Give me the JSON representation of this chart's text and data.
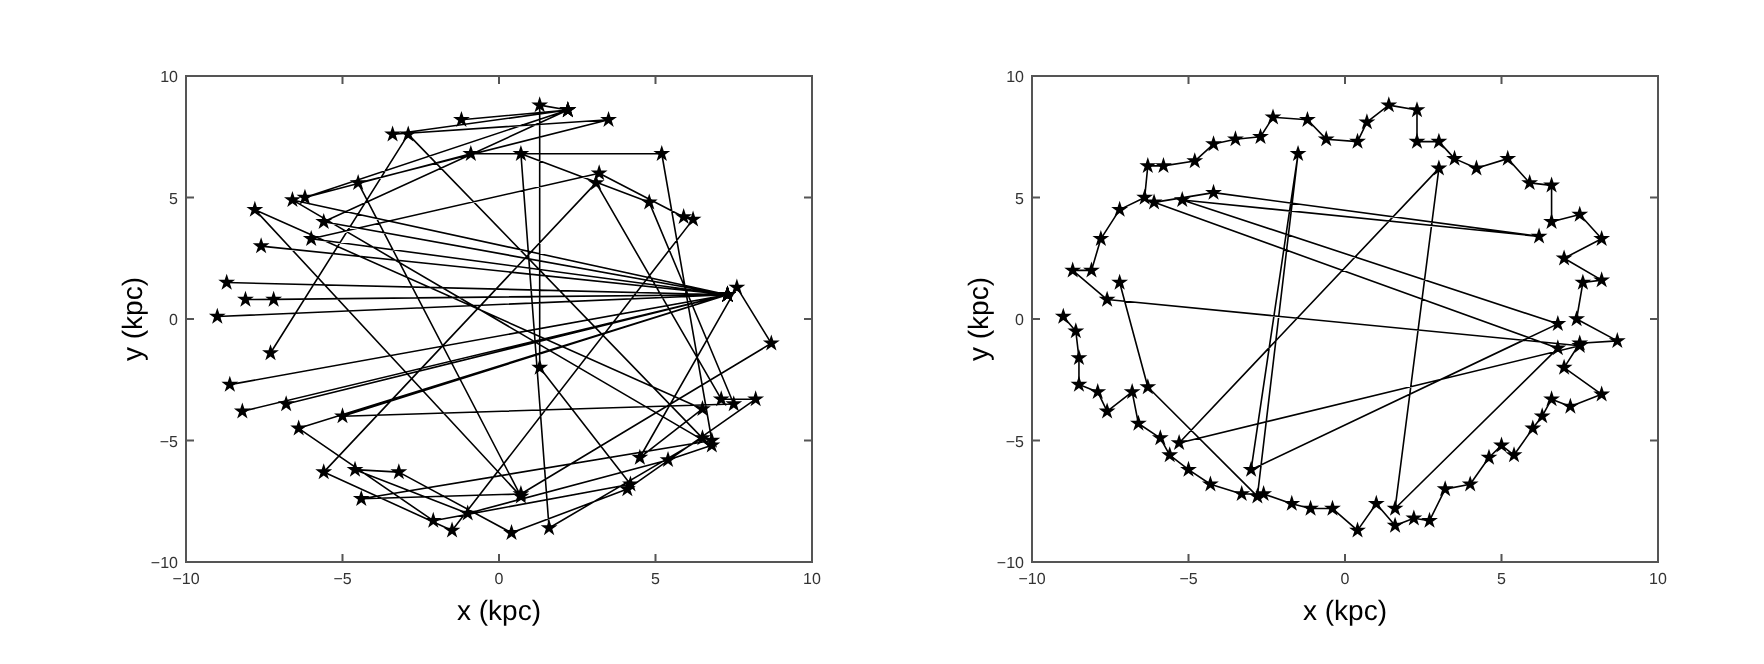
{
  "chart_data": [
    {
      "type": "line",
      "xlabel": "x (kpc)",
      "ylabel": "y (kpc)",
      "xlim": [
        -10,
        10
      ],
      "ylim": [
        -10,
        10
      ],
      "xticks": [
        -10,
        -5,
        0,
        5,
        10
      ],
      "yticks": [
        -10,
        -5,
        0,
        5,
        10
      ],
      "marker": "star",
      "line_style": "solid",
      "grid": false,
      "series": [
        {
          "color": "#000000",
          "x": [
            -9,
            7.3,
            -8.7,
            7.3,
            -7.6,
            7.3,
            -6.8,
            7.3,
            -8.2,
            7.3,
            -5.6,
            2.2,
            -1.2,
            2.2,
            -3.4,
            3.5,
            -4.5,
            0.7,
            -7.8,
            6.5,
            4.5,
            7.6,
            8.7,
            0.7,
            -4.4,
            6.8,
            5.2,
            -0.9,
            -6.2,
            2.2,
            1.3,
            1.3,
            4.2,
            -2.1,
            -6.4,
            7.3,
            -8.6,
            7.3,
            -7.2,
            7.3,
            -6,
            3.2,
            5.9,
            6.2,
            -1.5,
            -5.6,
            3.1,
            7.1,
            8.2,
            4.1,
            0.4,
            -3.2,
            -4.6,
            -1,
            5.4,
            6.8,
            -6.6,
            7.3,
            -8.1,
            7.3,
            -5,
            7.5,
            4.8,
            0.7,
            1.6,
            6.5,
            -2.9,
            -7.3
          ],
          "values": [
            0.1,
            1,
            1.5,
            1,
            3,
            1,
            -3.5,
            1,
            -3.8,
            1,
            4,
            8.6,
            8.2,
            8.6,
            7.6,
            8.2,
            5.6,
            -7.3,
            4.5,
            -3.7,
            -5.7,
            1.3,
            -1,
            -7.2,
            -7.4,
            -5,
            6.8,
            6.8,
            5,
            8.6,
            8.8,
            -2,
            -6.8,
            -8.3,
            -4.5,
            1,
            -2.7,
            1,
            0.8,
            1,
            3.3,
            6,
            4.2,
            4.1,
            -8.7,
            -6.3,
            5.6,
            -3.3,
            -3.3,
            -7,
            -8.8,
            -6.3,
            -6.2,
            -8,
            -5.8,
            -5.2,
            4.9,
            1,
            0.8,
            1,
            -4,
            -3.5,
            4.8,
            6.8,
            -8.6,
            -4.9,
            7.6,
            -1.4
          ]
        }
      ]
    },
    {
      "type": "line",
      "xlabel": "x (kpc)",
      "ylabel": "y (kpc)",
      "xlim": [
        -10,
        10
      ],
      "ylim": [
        -10,
        10
      ],
      "xticks": [
        -10,
        -5,
        0,
        5,
        10
      ],
      "yticks": [
        -10,
        -5,
        0,
        5,
        10
      ],
      "marker": "star",
      "line_style": "solid",
      "grid": false,
      "series": [
        {
          "color": "#000000",
          "x": [
            -9,
            -8.6,
            -8.5,
            -8.5,
            -7.9,
            -7.6,
            -6.8,
            -6.6,
            -5.9,
            -5.6,
            -5,
            -4.3,
            -3.3,
            -2.6,
            -1.7,
            -1.1,
            -0.4,
            0.4,
            1,
            1.6,
            2.2,
            2.7,
            3.2,
            4,
            4.6,
            5,
            5.4,
            6,
            6.3,
            6.6,
            7.2,
            8.2,
            7,
            7.5,
            8.7,
            7.4,
            7.6,
            8.2,
            7,
            8.2,
            7.5,
            6.6,
            6.6,
            5.9,
            5.2,
            4.2,
            3.5,
            3,
            2.3,
            2.3,
            1.4,
            0.7,
            0.4,
            -0.6,
            -1.2,
            -2.3,
            -2.7,
            -3.5,
            -4.2,
            -4.8,
            -5.8,
            -6.3,
            -6.4,
            -7.2,
            -7.8,
            -8.1,
            -8.7,
            -7.6,
            7.5,
            -5.3,
            3,
            1.6,
            6.8,
            -6.1,
            -4.2,
            6.2,
            -5.2,
            6.8,
            -3,
            -1.5,
            -2.8,
            -6.3,
            -7.2
          ],
          "values": [
            0.1,
            -0.5,
            -1.6,
            -2.7,
            -3,
            -3.8,
            -3,
            -4.3,
            -4.9,
            -5.6,
            -6.2,
            -6.8,
            -7.2,
            -7.2,
            -7.6,
            -7.8,
            -7.8,
            -8.7,
            -7.6,
            -8.5,
            -8.2,
            -8.3,
            -7,
            -6.8,
            -5.7,
            -5.2,
            -5.6,
            -4.5,
            -4,
            -3.3,
            -3.6,
            -3.1,
            -2,
            -1,
            -0.9,
            0,
            1.5,
            1.6,
            2.5,
            3.3,
            4.3,
            4,
            5.5,
            5.6,
            6.6,
            6.2,
            6.6,
            7.3,
            7.3,
            8.6,
            8.8,
            8.1,
            7.3,
            7.4,
            8.2,
            8.3,
            7.5,
            7.4,
            7.2,
            6.5,
            6.3,
            6.3,
            5,
            4.5,
            3.3,
            2,
            2,
            0.8,
            -1.1,
            -5.1,
            6.2,
            -7.8,
            -1.2,
            4.8,
            5.2,
            3.4,
            4.9,
            -0.2,
            -6.2,
            6.8,
            -7.3,
            -2.8,
            1.5
          ]
        }
      ]
    }
  ]
}
